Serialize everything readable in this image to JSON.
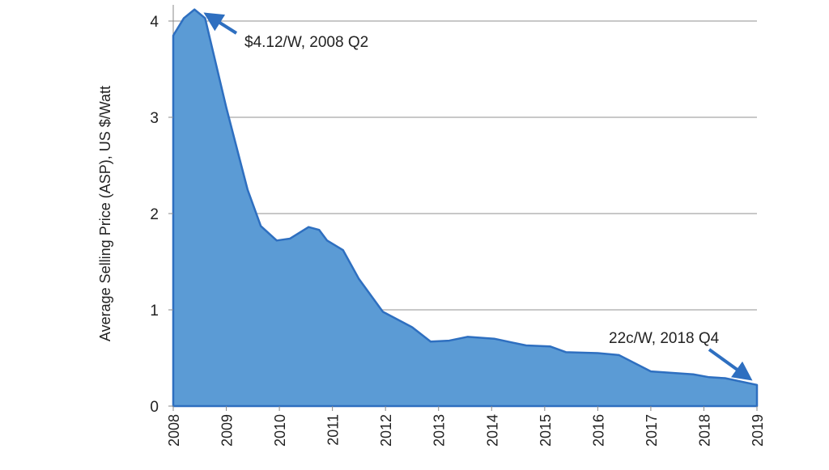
{
  "chart_data": {
    "type": "area",
    "title": "",
    "xlabel": "",
    "ylabel": "Average Selling Price (ASP),  US $/Watt",
    "xlim": [
      2008,
      2019
    ],
    "ylim": [
      0,
      4
    ],
    "grid": true,
    "x_ticks": [
      "2008",
      "2009",
      "2010",
      "2011",
      "2012",
      "2013",
      "2014",
      "2015",
      "2016",
      "2017",
      "2018",
      "2019"
    ],
    "y_ticks": [
      "0",
      "1",
      "2",
      "3",
      "4"
    ],
    "fill_color": "#5b9bd5",
    "line_color": "#2e6fc0",
    "series": [
      {
        "x": [
          2008.0,
          2008.2,
          2008.4,
          2008.6,
          2009.0,
          2009.4,
          2009.65,
          2009.95,
          2010.2,
          2010.55,
          2010.75,
          2010.9,
          2011.2,
          2011.5,
          2011.95,
          2012.5,
          2012.85,
          2013.2,
          2013.55,
          2014.05,
          2014.65,
          2015.1,
          2015.4,
          2016.0,
          2016.4,
          2017.0,
          2017.8,
          2018.1,
          2018.4,
          2019.0
        ],
        "y": [
          3.85,
          4.03,
          4.12,
          4.03,
          3.1,
          2.25,
          1.87,
          1.72,
          1.74,
          1.86,
          1.83,
          1.72,
          1.62,
          1.32,
          0.98,
          0.82,
          0.67,
          0.68,
          0.72,
          0.7,
          0.63,
          0.62,
          0.56,
          0.55,
          0.53,
          0.36,
          0.33,
          0.3,
          0.29,
          0.22
        ]
      }
    ],
    "annotations": [
      {
        "text": "$4.12/W, 2008 Q2",
        "x": 2008.4,
        "y": 4.12
      },
      {
        "text": "22c/W, 2018 Q4",
        "x": 2019.0,
        "y": 0.22
      }
    ]
  }
}
